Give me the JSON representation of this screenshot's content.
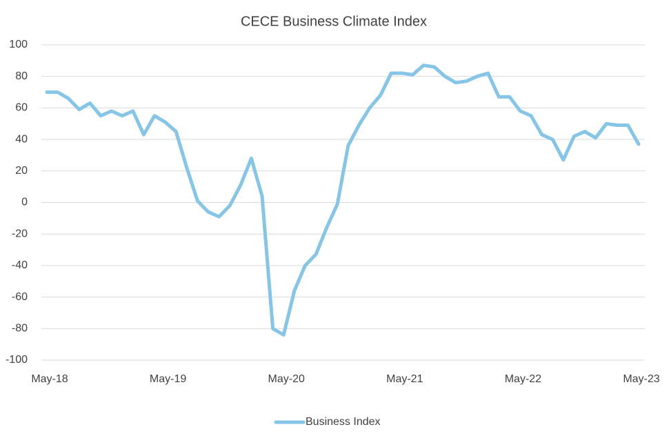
{
  "chart_data": {
    "type": "line",
    "title": "CECE Business Climate Index",
    "categories": [
      "May-18",
      null,
      null,
      null,
      null,
      null,
      null,
      null,
      null,
      null,
      null,
      "May-19",
      null,
      null,
      null,
      null,
      null,
      null,
      null,
      null,
      null,
      null,
      "May-20",
      null,
      null,
      null,
      null,
      null,
      null,
      null,
      null,
      null,
      null,
      "May-21",
      null,
      null,
      null,
      null,
      null,
      null,
      null,
      null,
      null,
      null,
      "May-22",
      null,
      null,
      null,
      null,
      null,
      null,
      null,
      null,
      null,
      null,
      "May-23"
    ],
    "series": [
      {
        "name": "Business Index",
        "color": "#85c5e8",
        "values": [
          70,
          70,
          66,
          59,
          63,
          55,
          58,
          55,
          58,
          43,
          55,
          51,
          45,
          22,
          1,
          -6,
          -9,
          -2,
          11,
          28,
          4,
          -80,
          -84,
          -56,
          -40,
          -33,
          -16,
          -1,
          36,
          49,
          60,
          68,
          82,
          82,
          81,
          87,
          86,
          80,
          76,
          77,
          80,
          82,
          67,
          67,
          58,
          55,
          43,
          40,
          27,
          42,
          45,
          41,
          50,
          49,
          49,
          37
        ]
      }
    ],
    "ylim": [
      -100,
      100
    ],
    "yticks": [
      -100,
      -80,
      -60,
      -40,
      -20,
      0,
      20,
      40,
      60,
      80,
      100
    ],
    "grid": true,
    "legend": "bottom"
  }
}
